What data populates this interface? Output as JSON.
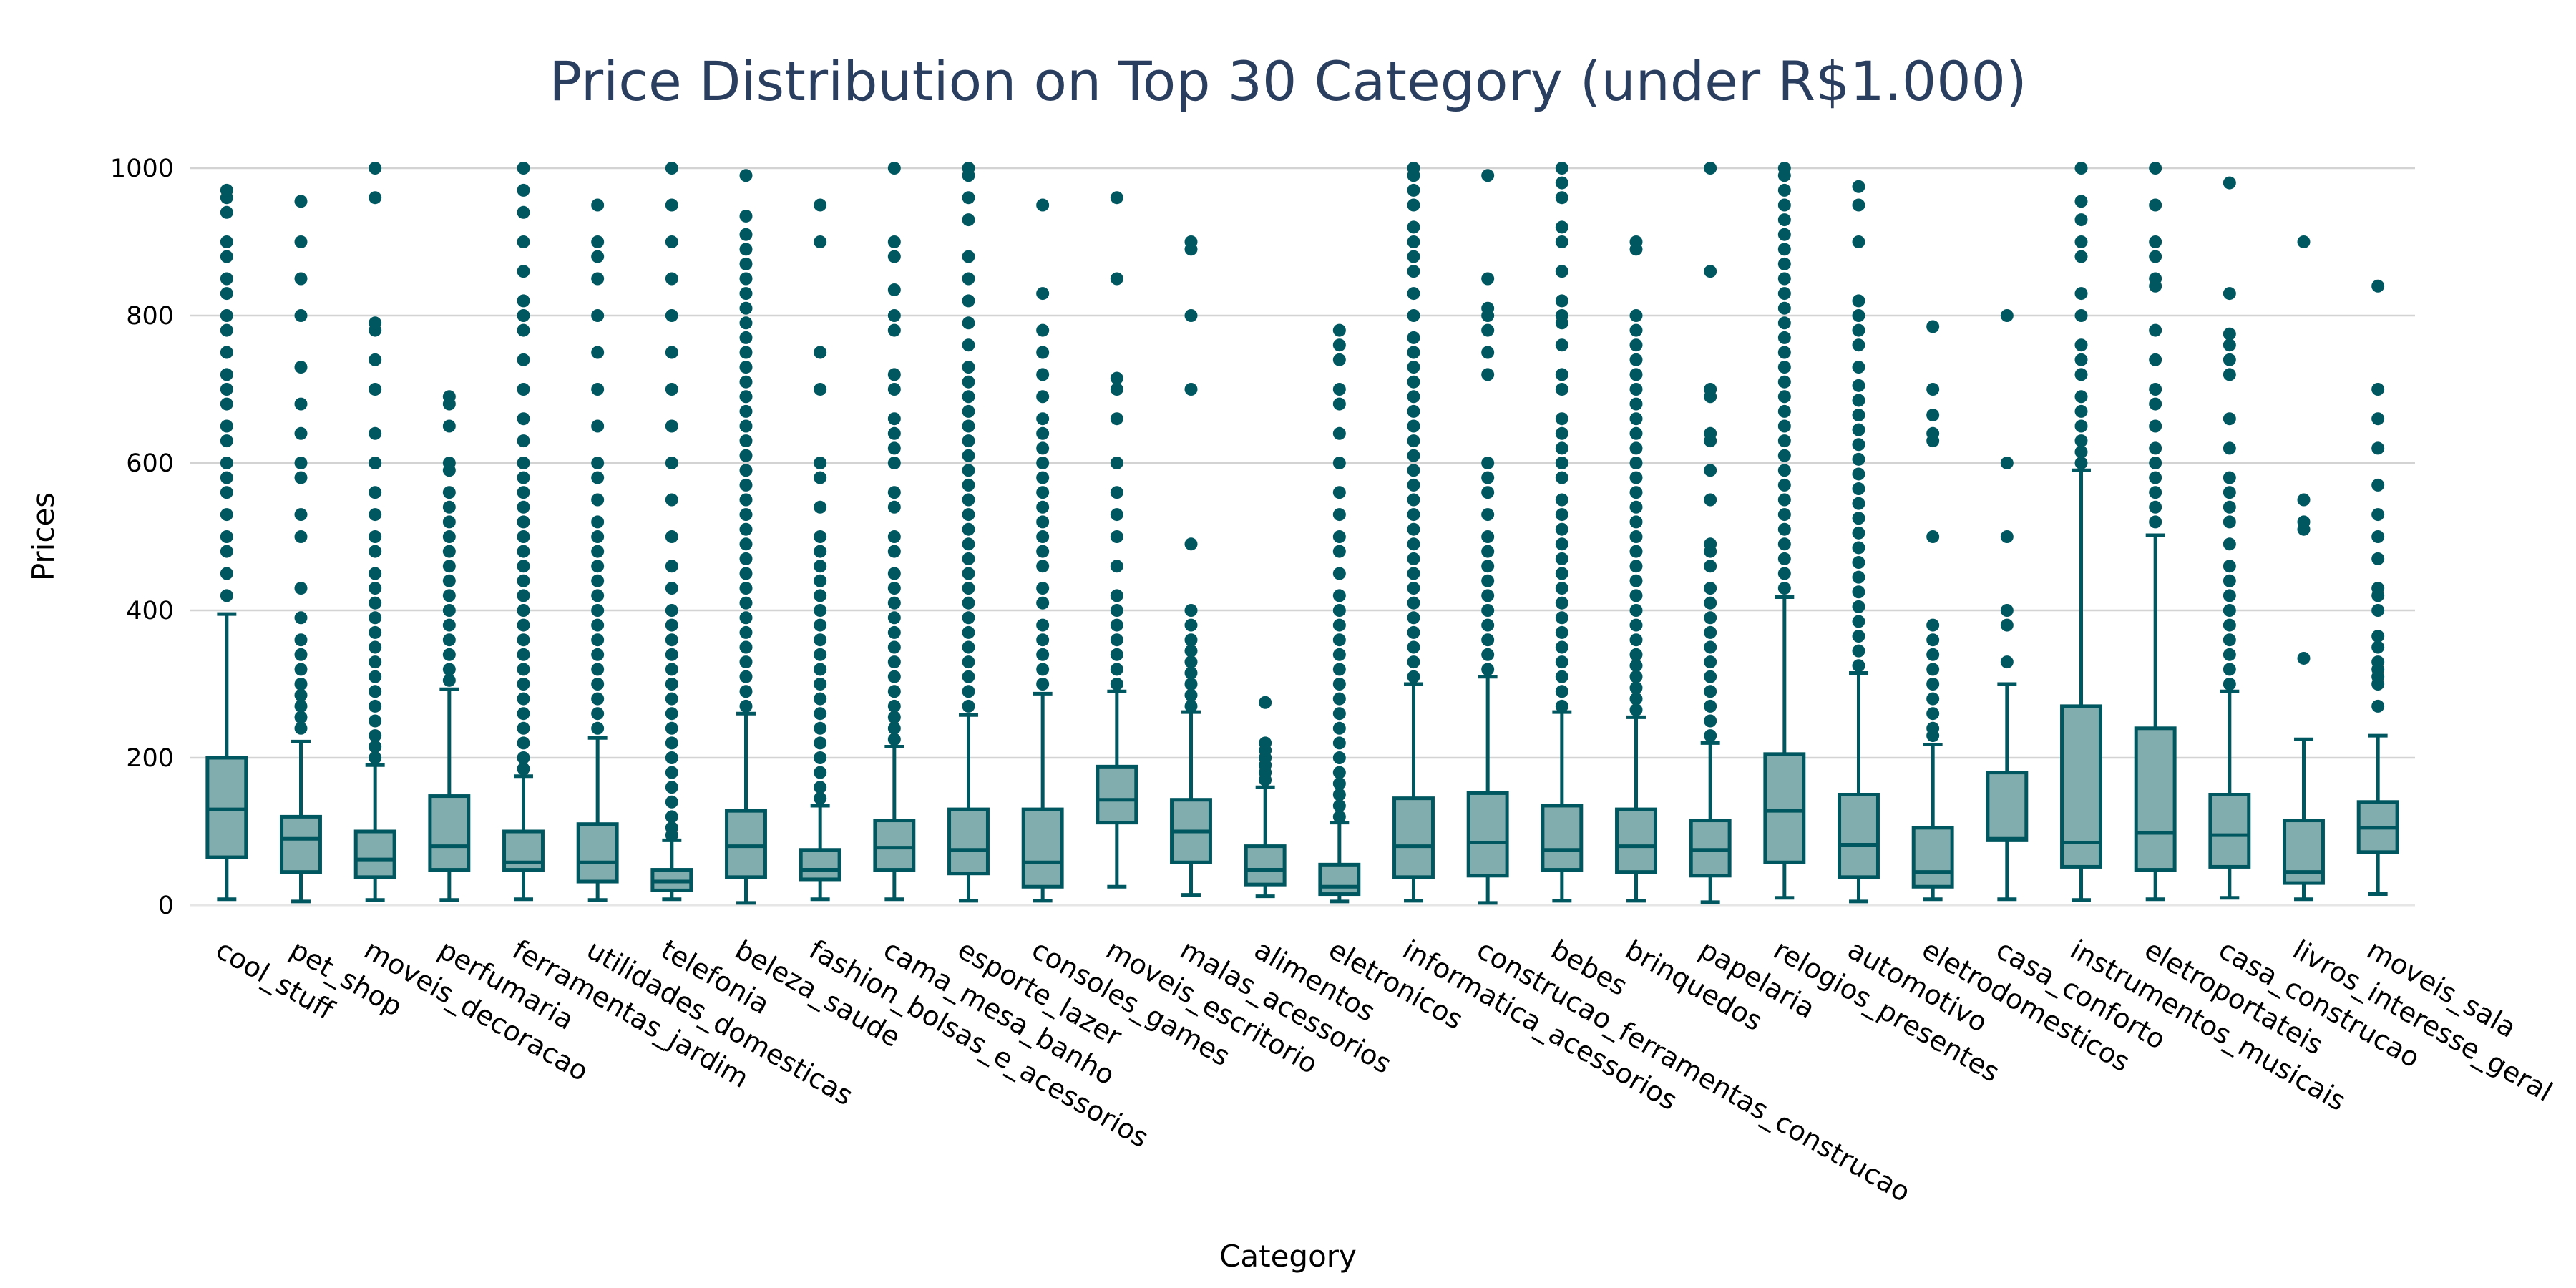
{
  "chart_data": {
    "type": "box",
    "title": "Price Distribution on Top 30 Category (under R$1.000)",
    "xlabel": "Category",
    "ylabel": "Prices",
    "ylim": [
      0,
      1000
    ],
    "yticks": [
      0,
      200,
      400,
      600,
      800,
      1000
    ],
    "grid": true,
    "legend": "none",
    "colors": {
      "line": "#00575f",
      "fill": "#82adae",
      "title": "#2a3f5f",
      "grid": "#d3d3d3"
    },
    "categories": [
      "cool_stuff",
      "pet_shop",
      "moveis_decoracao",
      "perfumaria",
      "ferramentas_jardim",
      "utilidades_domesticas",
      "telefonia",
      "beleza_saude",
      "fashion_bolsas_e_acessorios",
      "cama_mesa_banho",
      "esporte_lazer",
      "consoles_games",
      "moveis_escritorio",
      "malas_acessorios",
      "alimentos",
      "eletronicos",
      "informatica_acessorios",
      "construcao_ferramentas_construcao",
      "bebes",
      "brinquedos",
      "papelaria",
      "relogios_presentes",
      "automotivo",
      "eletrodomesticos",
      "casa_conforto",
      "instrumentos_musicais",
      "eletroportateis",
      "casa_construcao",
      "livros_interesse_geral",
      "moveis_sala"
    ],
    "boxes": [
      {
        "min": 8,
        "q1": 65,
        "median": 130,
        "q3": 200,
        "max": 395,
        "outliers": [
          420,
          450,
          480,
          500,
          530,
          560,
          580,
          600,
          630,
          650,
          680,
          700,
          720,
          750,
          780,
          800,
          830,
          850,
          880,
          900,
          940,
          960,
          970
        ]
      },
      {
        "min": 5,
        "q1": 45,
        "median": 90,
        "q3": 120,
        "max": 222,
        "outliers": [
          240,
          255,
          270,
          285,
          300,
          320,
          340,
          360,
          390,
          430,
          500,
          530,
          580,
          600,
          640,
          680,
          730,
          800,
          850,
          900,
          955
        ]
      },
      {
        "min": 7,
        "q1": 38,
        "median": 62,
        "q3": 100,
        "max": 190,
        "outliers": [
          200,
          215,
          230,
          250,
          270,
          290,
          310,
          330,
          350,
          370,
          390,
          410,
          430,
          450,
          480,
          500,
          530,
          560,
          600,
          640,
          700,
          740,
          780,
          790,
          960,
          1000
        ]
      },
      {
        "min": 7,
        "q1": 48,
        "median": 80,
        "q3": 148,
        "max": 293,
        "outliers": [
          305,
          320,
          340,
          360,
          380,
          400,
          420,
          440,
          460,
          480,
          500,
          520,
          540,
          560,
          590,
          600,
          650,
          680,
          690
        ]
      },
      {
        "min": 8,
        "q1": 48,
        "median": 58,
        "q3": 100,
        "max": 175,
        "outliers": [
          185,
          200,
          220,
          240,
          260,
          280,
          300,
          320,
          340,
          360,
          380,
          400,
          420,
          440,
          460,
          480,
          500,
          520,
          540,
          560,
          580,
          600,
          630,
          660,
          700,
          740,
          780,
          800,
          820,
          860,
          900,
          940,
          970,
          1000
        ]
      },
      {
        "min": 7,
        "q1": 32,
        "median": 58,
        "q3": 110,
        "max": 227,
        "outliers": [
          240,
          260,
          280,
          300,
          320,
          340,
          360,
          380,
          400,
          420,
          440,
          460,
          480,
          500,
          520,
          550,
          580,
          600,
          650,
          700,
          750,
          800,
          850,
          880,
          900,
          950
        ]
      },
      {
        "min": 8,
        "q1": 20,
        "median": 32,
        "q3": 48,
        "max": 88,
        "outliers": [
          95,
          105,
          120,
          140,
          160,
          180,
          200,
          220,
          240,
          260,
          280,
          300,
          320,
          340,
          360,
          380,
          400,
          430,
          460,
          500,
          550,
          600,
          650,
          700,
          750,
          800,
          850,
          900,
          950,
          1000
        ]
      },
      {
        "min": 3,
        "q1": 38,
        "median": 80,
        "q3": 128,
        "max": 260,
        "outliers": [
          270,
          290,
          310,
          330,
          350,
          370,
          390,
          410,
          430,
          450,
          470,
          490,
          510,
          530,
          550,
          570,
          590,
          610,
          630,
          650,
          670,
          690,
          710,
          730,
          750,
          770,
          790,
          810,
          830,
          850,
          870,
          890,
          910,
          935,
          990
        ]
      },
      {
        "min": 8,
        "q1": 35,
        "median": 48,
        "q3": 75,
        "max": 135,
        "outliers": [
          145,
          160,
          180,
          200,
          220,
          240,
          260,
          280,
          300,
          320,
          340,
          360,
          380,
          400,
          420,
          440,
          460,
          480,
          500,
          540,
          580,
          600,
          700,
          750,
          900,
          950
        ]
      },
      {
        "min": 8,
        "q1": 48,
        "median": 78,
        "q3": 115,
        "max": 215,
        "outliers": [
          225,
          240,
          255,
          270,
          290,
          310,
          330,
          350,
          370,
          390,
          410,
          430,
          450,
          480,
          500,
          540,
          560,
          600,
          620,
          640,
          660,
          700,
          720,
          780,
          800,
          835,
          880,
          900,
          1000
        ]
      },
      {
        "min": 6,
        "q1": 43,
        "median": 75,
        "q3": 130,
        "max": 258,
        "outliers": [
          270,
          290,
          310,
          330,
          350,
          370,
          390,
          410,
          430,
          450,
          470,
          490,
          510,
          530,
          550,
          570,
          590,
          610,
          630,
          650,
          670,
          690,
          710,
          730,
          760,
          790,
          820,
          850,
          880,
          930,
          960,
          990,
          1000
        ]
      },
      {
        "min": 6,
        "q1": 25,
        "median": 58,
        "q3": 130,
        "max": 287,
        "outliers": [
          300,
          320,
          340,
          360,
          380,
          410,
          430,
          460,
          480,
          500,
          520,
          540,
          560,
          580,
          600,
          620,
          640,
          660,
          690,
          720,
          750,
          780,
          830,
          950
        ]
      },
      {
        "min": 25,
        "q1": 112,
        "median": 143,
        "q3": 188,
        "max": 290,
        "outliers": [
          300,
          320,
          340,
          360,
          380,
          400,
          420,
          460,
          500,
          530,
          560,
          600,
          660,
          700,
          715,
          850,
          960
        ]
      },
      {
        "min": 14,
        "q1": 58,
        "median": 100,
        "q3": 143,
        "max": 262,
        "outliers": [
          270,
          285,
          300,
          315,
          330,
          345,
          360,
          380,
          400,
          490,
          700,
          800,
          890,
          900
        ]
      },
      {
        "min": 12,
        "q1": 28,
        "median": 48,
        "q3": 80,
        "max": 160,
        "outliers": [
          170,
          180,
          190,
          200,
          210,
          220,
          275
        ]
      },
      {
        "min": 5,
        "q1": 15,
        "median": 25,
        "q3": 55,
        "max": 112,
        "outliers": [
          120,
          135,
          150,
          165,
          180,
          200,
          220,
          240,
          260,
          280,
          300,
          320,
          340,
          360,
          380,
          400,
          420,
          450,
          480,
          500,
          530,
          560,
          600,
          640,
          680,
          700,
          740,
          760,
          780
        ]
      },
      {
        "min": 6,
        "q1": 38,
        "median": 80,
        "q3": 145,
        "max": 300,
        "outliers": [
          310,
          330,
          350,
          370,
          390,
          410,
          430,
          450,
          470,
          490,
          510,
          530,
          550,
          570,
          590,
          610,
          630,
          650,
          670,
          690,
          710,
          730,
          750,
          770,
          800,
          830,
          860,
          880,
          900,
          920,
          950,
          970,
          990,
          1000
        ]
      },
      {
        "min": 3,
        "q1": 40,
        "median": 85,
        "q3": 152,
        "max": 310,
        "outliers": [
          320,
          340,
          360,
          380,
          400,
          420,
          440,
          460,
          480,
          500,
          530,
          560,
          580,
          600,
          720,
          750,
          780,
          800,
          810,
          850,
          990
        ]
      },
      {
        "min": 6,
        "q1": 48,
        "median": 75,
        "q3": 135,
        "max": 262,
        "outliers": [
          270,
          290,
          310,
          330,
          350,
          370,
          390,
          410,
          430,
          450,
          470,
          490,
          510,
          530,
          550,
          580,
          600,
          620,
          640,
          660,
          700,
          720,
          760,
          790,
          800,
          820,
          860,
          900,
          920,
          960,
          980,
          1000
        ]
      },
      {
        "min": 6,
        "q1": 45,
        "median": 80,
        "q3": 130,
        "max": 255,
        "outliers": [
          265,
          280,
          295,
          310,
          325,
          340,
          360,
          380,
          400,
          420,
          440,
          460,
          480,
          500,
          520,
          540,
          560,
          580,
          600,
          620,
          640,
          660,
          680,
          700,
          720,
          740,
          760,
          780,
          800,
          890,
          900
        ]
      },
      {
        "min": 4,
        "q1": 40,
        "median": 75,
        "q3": 115,
        "max": 220,
        "outliers": [
          230,
          250,
          270,
          290,
          310,
          330,
          350,
          370,
          390,
          410,
          430,
          460,
          480,
          490,
          550,
          590,
          630,
          640,
          690,
          700,
          860,
          1000
        ]
      },
      {
        "min": 10,
        "q1": 58,
        "median": 128,
        "q3": 205,
        "max": 418,
        "outliers": [
          430,
          450,
          470,
          490,
          510,
          530,
          550,
          570,
          590,
          610,
          630,
          650,
          670,
          690,
          710,
          730,
          750,
          770,
          790,
          810,
          830,
          850,
          870,
          890,
          910,
          930,
          950,
          970,
          990,
          1000
        ]
      },
      {
        "min": 5,
        "q1": 38,
        "median": 82,
        "q3": 150,
        "max": 315,
        "outliers": [
          325,
          345,
          365,
          385,
          405,
          425,
          445,
          465,
          485,
          505,
          525,
          545,
          565,
          585,
          605,
          625,
          645,
          665,
          685,
          705,
          730,
          760,
          780,
          800,
          820,
          900,
          950,
          975
        ]
      },
      {
        "min": 8,
        "q1": 25,
        "median": 45,
        "q3": 105,
        "max": 218,
        "outliers": [
          230,
          240,
          260,
          280,
          300,
          320,
          340,
          360,
          380,
          500,
          630,
          640,
          665,
          700,
          785
        ]
      },
      {
        "min": 8,
        "q1": 88,
        "median": 90,
        "q3": 180,
        "max": 300,
        "outliers": [
          330,
          380,
          400,
          500,
          600,
          800
        ]
      },
      {
        "min": 7,
        "q1": 52,
        "median": 85,
        "q3": 270,
        "max": 590,
        "outliers": [
          600,
          615,
          630,
          650,
          670,
          690,
          720,
          740,
          760,
          800,
          830,
          880,
          900,
          930,
          955,
          1000
        ]
      },
      {
        "min": 8,
        "q1": 48,
        "median": 98,
        "q3": 240,
        "max": 502,
        "outliers": [
          520,
          540,
          560,
          580,
          600,
          620,
          650,
          680,
          700,
          740,
          780,
          840,
          850,
          880,
          900,
          950,
          1000
        ]
      },
      {
        "min": 10,
        "q1": 52,
        "median": 95,
        "q3": 150,
        "max": 290,
        "outliers": [
          300,
          320,
          340,
          360,
          380,
          400,
          420,
          440,
          460,
          490,
          520,
          540,
          560,
          580,
          620,
          660,
          720,
          740,
          760,
          775,
          830,
          980
        ]
      },
      {
        "min": 8,
        "q1": 30,
        "median": 45,
        "q3": 115,
        "max": 225,
        "outliers": [
          335,
          510,
          520,
          550,
          900
        ]
      },
      {
        "min": 15,
        "q1": 72,
        "median": 105,
        "q3": 140,
        "max": 230,
        "outliers": [
          270,
          300,
          310,
          320,
          330,
          350,
          365,
          400,
          420,
          430,
          470,
          500,
          530,
          570,
          620,
          660,
          700,
          840
        ]
      }
    ]
  }
}
